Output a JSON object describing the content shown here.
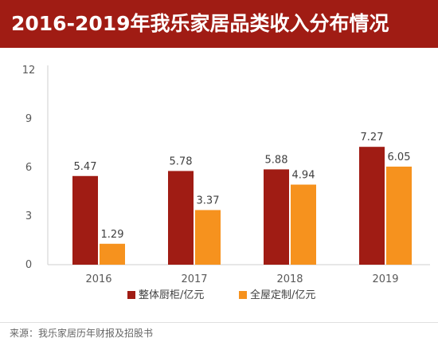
{
  "title": "2016-2019年我乐家居品类收入分布情况",
  "source": "来源：我乐家居历年财报及招股书",
  "chart_data": {
    "type": "bar",
    "categories": [
      "2016",
      "2017",
      "2018",
      "2019"
    ],
    "series": [
      {
        "name": "整体厨柜/亿元",
        "values": [
          5.47,
          5.78,
          5.88,
          7.27
        ],
        "color": "#a01c14"
      },
      {
        "name": "全屋定制/亿元",
        "values": [
          1.29,
          3.37,
          4.94,
          6.05
        ],
        "color": "#f6921e"
      }
    ],
    "ylim": [
      0,
      12
    ],
    "yticks": [
      "0",
      "3",
      "6",
      "9",
      "12"
    ],
    "legend": "bottom",
    "grid": false
  }
}
